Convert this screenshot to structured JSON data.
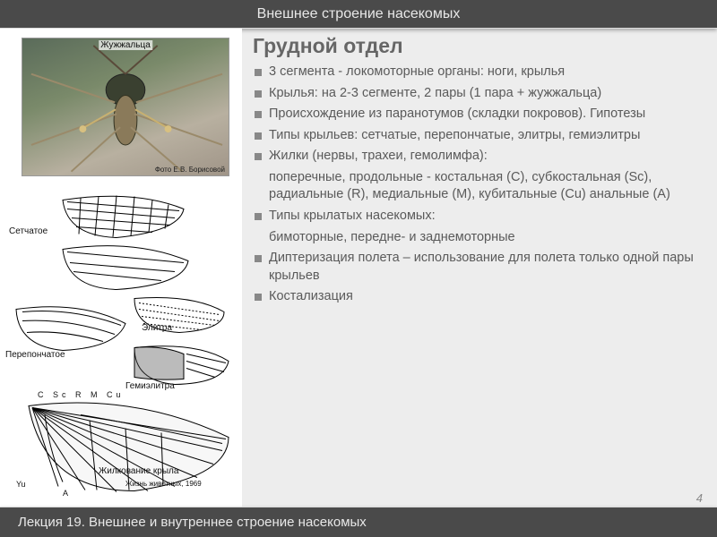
{
  "header": {
    "title": "Внешнее строение насекомых"
  },
  "footer": {
    "text": "Лекция 19. Внешнее и внутреннее строение насекомых"
  },
  "page_number": "4",
  "photo": {
    "label": "Жужжальца",
    "credit": "Фото Е.В. Борисовой"
  },
  "diagram": {
    "labels": {
      "setch": "Сетчатое",
      "elytra": "Элитра",
      "perep": "Перепончатое",
      "gemi": "Гемиэлитра",
      "veins_letters": "C Sc R M Cu",
      "zhilk": "Жилкование крыла",
      "yu": "Yu",
      "a": "A"
    },
    "credit": "Жизнь животных, 1969"
  },
  "section": {
    "title": "Грудной отдел",
    "items": [
      {
        "text": "3 сегмента - локомоторные органы: ноги, крылья",
        "bullet": true
      },
      {
        "text": "Крылья: на 2-3 сегменте, 2 пары (1 пара + жужжальца)",
        "bullet": true
      },
      {
        "text": "Происхождение из паранотумов (складки покровов). Гипотезы",
        "bullet": true
      },
      {
        "text": "Типы крыльев: сетчатые,  перепончатые, элитры, гемиэлитры",
        "bullet": true
      },
      {
        "text": "Жилки (нервы, трахеи, гемолимфа):",
        "bullet": true
      },
      {
        "text": "поперечные, продольные - костальная (C), субкостальная (Sc), радиальные (R), медиальные (M), кубитальные (Cu) анальные (A)",
        "bullet": false
      },
      {
        "text": "Типы крылатых насекомых:",
        "bullet": true
      },
      {
        "text": "бимоторные, передне- и заднемоторные",
        "bullet": false
      },
      {
        "text": "Диптеризация полета – использование для полета только одной пары крыльев",
        "bullet": true
      },
      {
        "text": "Костализация",
        "bullet": true
      }
    ]
  },
  "colors": {
    "bar_bg": "#4a4a4a",
    "bar_text": "#e8e8e8",
    "body_bg": "#ededed",
    "title_color": "#666666",
    "text_color": "#5a5a5a",
    "bullet_color": "#888888"
  },
  "typography": {
    "header_fontsize": 16,
    "footer_fontsize": 15,
    "title_fontsize": 23,
    "body_fontsize": 14.5,
    "diagram_label_fontsize": 10
  }
}
